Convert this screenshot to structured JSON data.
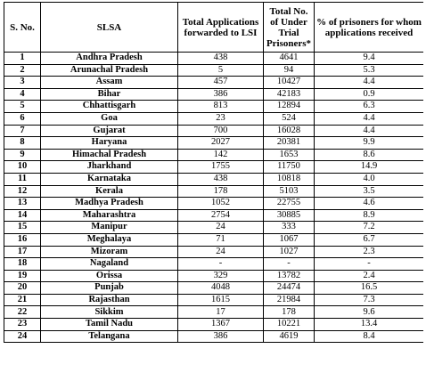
{
  "table": {
    "headers": {
      "sno": "S. No.",
      "slsa": "SLSA",
      "applications": "Total Applications forwarded to LSI",
      "prisoners": "Total No. of Under Trial Prisoners*",
      "percent": "% of prisoners for whom applications received"
    },
    "rows": [
      {
        "sno": "1",
        "state": "Andhra Pradesh",
        "applications": "438",
        "prisoners": "4641",
        "percent": "9.4"
      },
      {
        "sno": "2",
        "state": "Arunachal Pradesh",
        "applications": "5",
        "prisoners": "94",
        "percent": "5.3"
      },
      {
        "sno": "3",
        "state": "Assam",
        "applications": "457",
        "prisoners": "10427",
        "percent": "4.4"
      },
      {
        "sno": "4",
        "state": "Bihar",
        "applications": "386",
        "prisoners": "42183",
        "percent": "0.9"
      },
      {
        "sno": "5",
        "state": "Chhattisgarh",
        "applications": "813",
        "prisoners": "12894",
        "percent": "6.3"
      },
      {
        "sno": "6",
        "state": "Goa",
        "applications": "23",
        "prisoners": "524",
        "percent": "4.4"
      },
      {
        "sno": "7",
        "state": "Gujarat",
        "applications": "700",
        "prisoners": "16028",
        "percent": "4.4"
      },
      {
        "sno": "8",
        "state": "Haryana",
        "applications": "2027",
        "prisoners": "20381",
        "percent": "9.9"
      },
      {
        "sno": "9",
        "state": "Himachal Pradesh",
        "applications": "142",
        "prisoners": "1653",
        "percent": "8.6"
      },
      {
        "sno": "10",
        "state": "Jharkhand",
        "applications": "1755",
        "prisoners": "11750",
        "percent": "14.9"
      },
      {
        "sno": "11",
        "state": "Karnataka",
        "applications": "438",
        "prisoners": "10818",
        "percent": "4.0"
      },
      {
        "sno": "12",
        "state": "Kerala",
        "applications": "178",
        "prisoners": "5103",
        "percent": "3.5"
      },
      {
        "sno": "13",
        "state": "Madhya Pradesh",
        "applications": "1052",
        "prisoners": "22755",
        "percent": "4.6"
      },
      {
        "sno": "14",
        "state": "Maharashtra",
        "applications": "2754",
        "prisoners": "30885",
        "percent": "8.9"
      },
      {
        "sno": "15",
        "state": "Manipur",
        "applications": "24",
        "prisoners": "333",
        "percent": "7.2"
      },
      {
        "sno": "16",
        "state": "Meghalaya",
        "applications": "71",
        "prisoners": "1067",
        "percent": "6.7"
      },
      {
        "sno": "17",
        "state": "Mizoram",
        "applications": "24",
        "prisoners": "1027",
        "percent": "2.3"
      },
      {
        "sno": "18",
        "state": "Nagaland",
        "applications": "-",
        "prisoners": "-",
        "percent": "-"
      },
      {
        "sno": "19",
        "state": "Orissa",
        "applications": "329",
        "prisoners": "13782",
        "percent": "2.4"
      },
      {
        "sno": "20",
        "state": "Punjab",
        "applications": "4048",
        "prisoners": "24474",
        "percent": "16.5"
      },
      {
        "sno": "21",
        "state": "Rajasthan",
        "applications": "1615",
        "prisoners": "21984",
        "percent": "7.3"
      },
      {
        "sno": "22",
        "state": "Sikkim",
        "applications": "17",
        "prisoners": "178",
        "percent": "9.6"
      },
      {
        "sno": "23",
        "state": "Tamil Nadu",
        "applications": "1367",
        "prisoners": "10221",
        "percent": "13.4"
      },
      {
        "sno": "24",
        "state": "Telangana",
        "applications": "386",
        "prisoners": "4619",
        "percent": "8.4"
      }
    ]
  }
}
